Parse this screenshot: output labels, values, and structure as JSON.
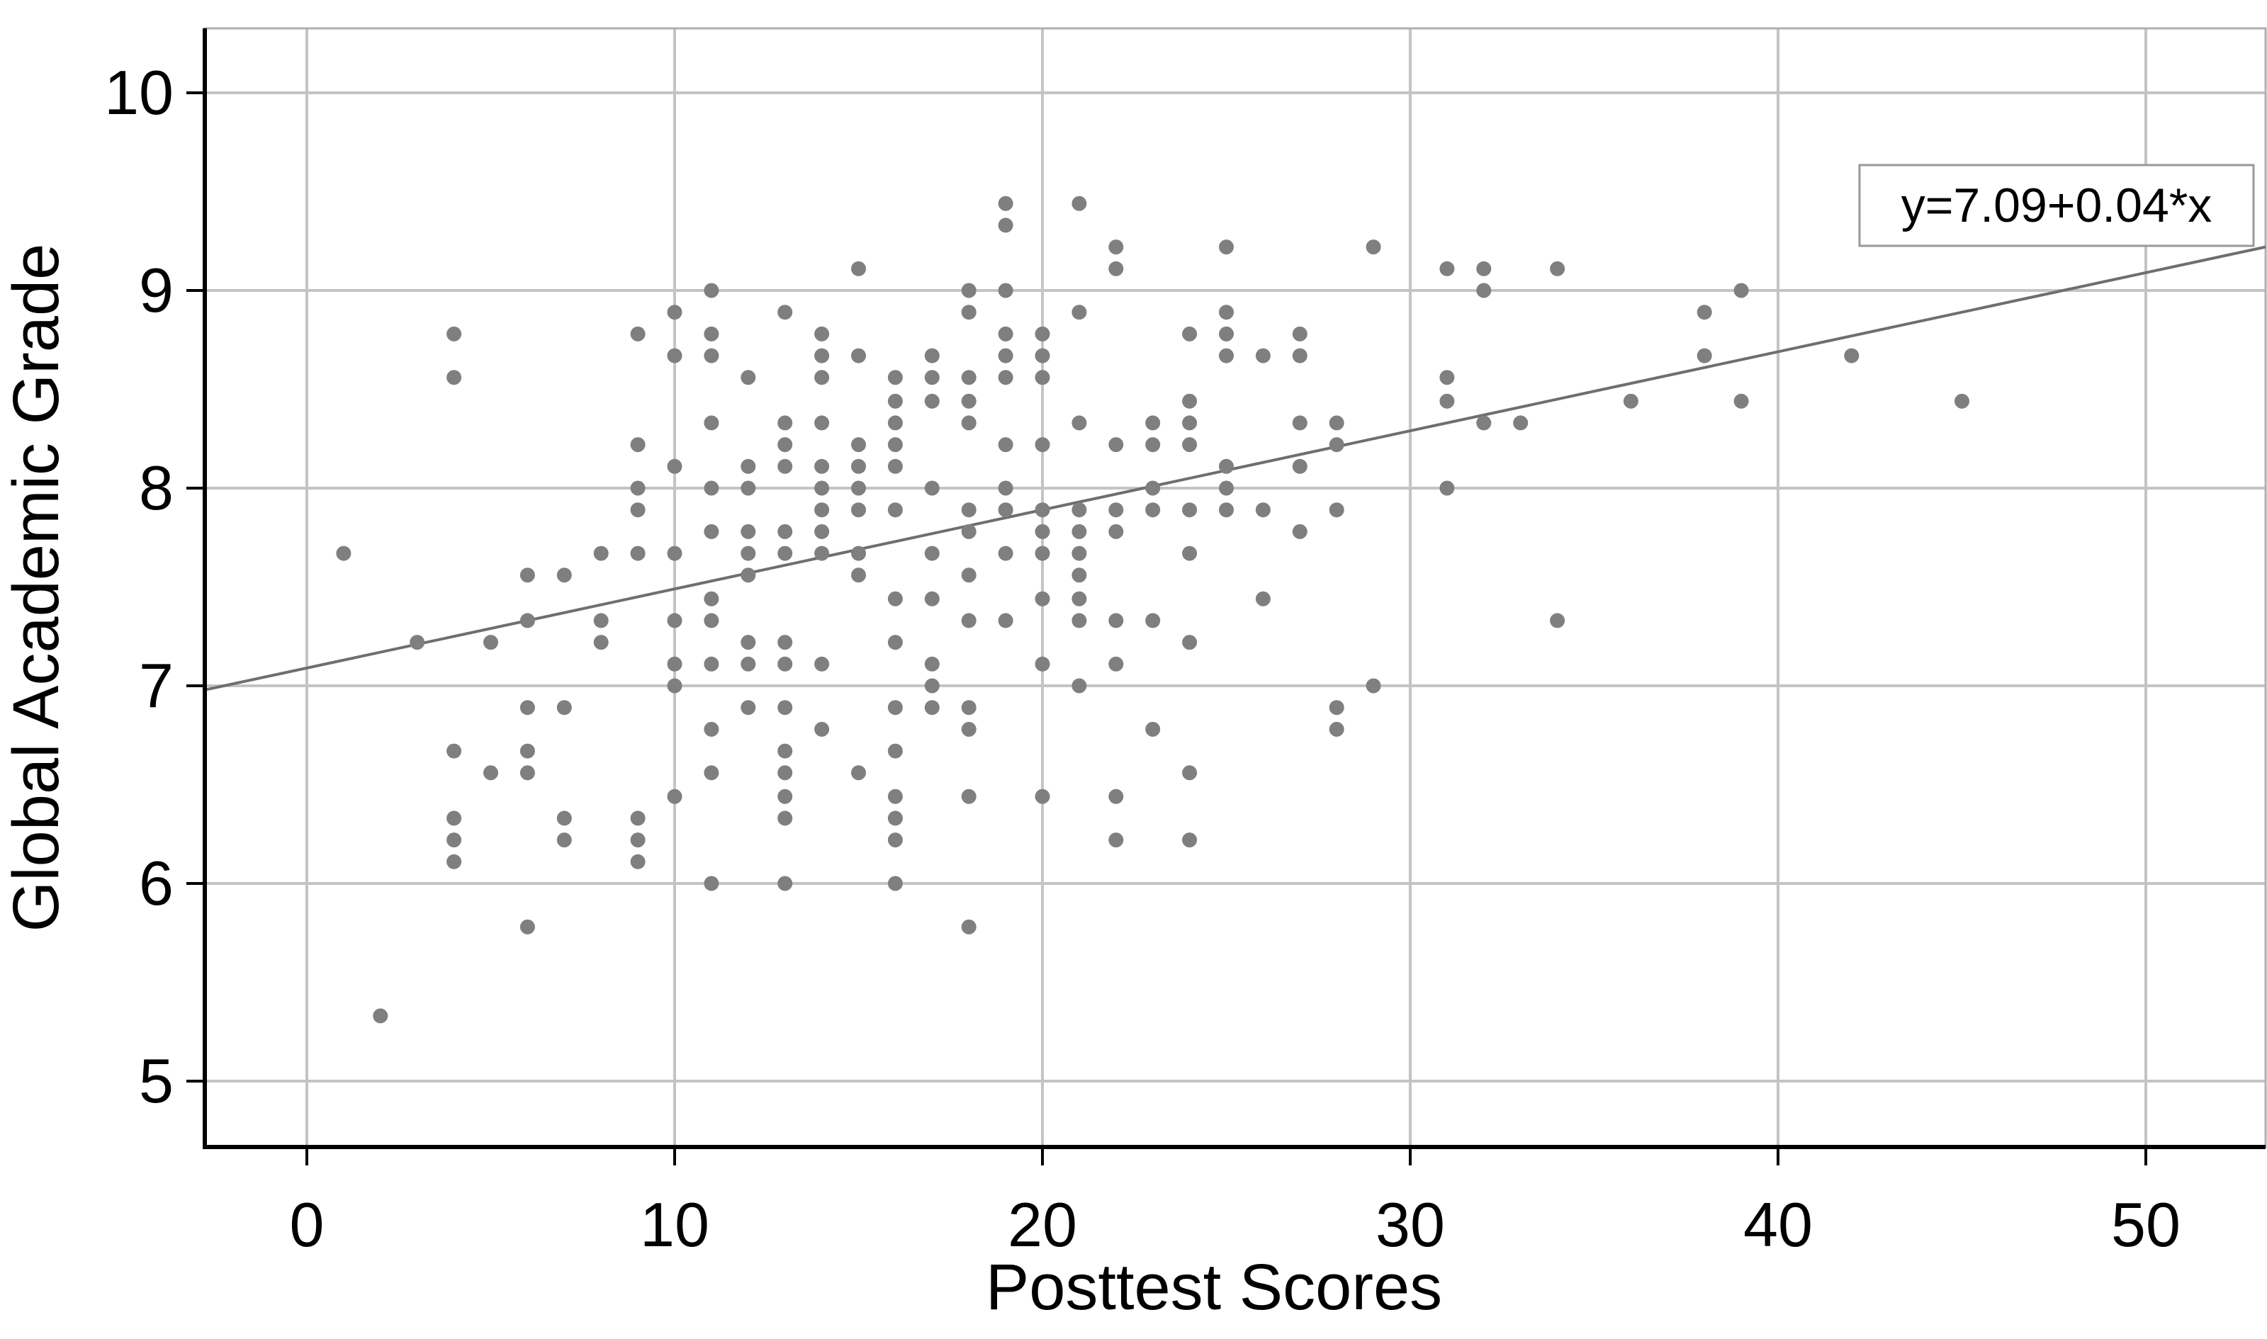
{
  "chart_data": {
    "type": "scatter",
    "title": "",
    "xlabel": "Posttest Scores",
    "ylabel": "Global Academic Grade",
    "x_ticks": [
      0,
      10,
      20,
      30,
      40,
      50
    ],
    "y_ticks": [
      10,
      9,
      8,
      7,
      6,
      5
    ],
    "xlim": [
      -2.74,
      53.3
    ],
    "ylim": [
      4.68,
      10.33
    ],
    "grid": true,
    "legend": "none",
    "annotation": "y=7.09+0.04*x",
    "regression": {
      "intercept": 7.09,
      "slope": 0.04
    },
    "colors": {
      "point": "#7f7f7f",
      "grid": "#c4c4c4",
      "box": "#b0b0b0",
      "axis": "#000000",
      "line": "#6e6e6e",
      "annotation_border": "#999999"
    },
    "points": [
      [
        1,
        7.67
      ],
      [
        2,
        5.33
      ],
      [
        3,
        7.22
      ],
      [
        4,
        8.78
      ],
      [
        4,
        8.56
      ],
      [
        4,
        6.67
      ],
      [
        4,
        6.33
      ],
      [
        4,
        6.22
      ],
      [
        4,
        6.11
      ],
      [
        5,
        7.22
      ],
      [
        5,
        6.56
      ],
      [
        6,
        7.56
      ],
      [
        6,
        7.33
      ],
      [
        6,
        6.89
      ],
      [
        6,
        6.67
      ],
      [
        6,
        6.56
      ],
      [
        6,
        5.78
      ],
      [
        7,
        7.56
      ],
      [
        7,
        6.89
      ],
      [
        7,
        6.33
      ],
      [
        7,
        6.22
      ],
      [
        8,
        7.67
      ],
      [
        8,
        7.33
      ],
      [
        8,
        7.22
      ],
      [
        9,
        8.78
      ],
      [
        9,
        8.22
      ],
      [
        9,
        8.0
      ],
      [
        9,
        7.89
      ],
      [
        9,
        7.67
      ],
      [
        9,
        6.33
      ],
      [
        9,
        6.22
      ],
      [
        9,
        6.11
      ],
      [
        10,
        8.89
      ],
      [
        10,
        8.67
      ],
      [
        10,
        8.11
      ],
      [
        10,
        7.67
      ],
      [
        10,
        7.33
      ],
      [
        10,
        7.11
      ],
      [
        10,
        7.0
      ],
      [
        10,
        6.44
      ],
      [
        11,
        9.0
      ],
      [
        11,
        8.78
      ],
      [
        11,
        8.67
      ],
      [
        11,
        8.33
      ],
      [
        11,
        8.0
      ],
      [
        11,
        7.78
      ],
      [
        11,
        7.44
      ],
      [
        11,
        7.33
      ],
      [
        11,
        7.11
      ],
      [
        11,
        6.78
      ],
      [
        11,
        6.56
      ],
      [
        11,
        6.0
      ],
      [
        12,
        8.56
      ],
      [
        12,
        8.11
      ],
      [
        12,
        8.0
      ],
      [
        12,
        7.78
      ],
      [
        12,
        7.67
      ],
      [
        12,
        7.56
      ],
      [
        12,
        7.22
      ],
      [
        12,
        7.11
      ],
      [
        12,
        6.89
      ],
      [
        13,
        8.89
      ],
      [
        13,
        8.33
      ],
      [
        13,
        8.22
      ],
      [
        13,
        8.11
      ],
      [
        13,
        7.78
      ],
      [
        13,
        7.67
      ],
      [
        13,
        7.22
      ],
      [
        13,
        7.11
      ],
      [
        13,
        6.89
      ],
      [
        13,
        6.67
      ],
      [
        13,
        6.56
      ],
      [
        13,
        6.44
      ],
      [
        13,
        6.33
      ],
      [
        13,
        6.0
      ],
      [
        14,
        8.78
      ],
      [
        14,
        8.67
      ],
      [
        14,
        8.56
      ],
      [
        14,
        8.33
      ],
      [
        14,
        8.11
      ],
      [
        14,
        8.0
      ],
      [
        14,
        7.89
      ],
      [
        14,
        7.78
      ],
      [
        14,
        7.67
      ],
      [
        14,
        7.11
      ],
      [
        14,
        6.78
      ],
      [
        15,
        9.11
      ],
      [
        15,
        8.67
      ],
      [
        15,
        8.22
      ],
      [
        15,
        8.11
      ],
      [
        15,
        8.0
      ],
      [
        15,
        7.89
      ],
      [
        15,
        7.67
      ],
      [
        15,
        7.56
      ],
      [
        15,
        6.56
      ],
      [
        16,
        8.56
      ],
      [
        16,
        8.44
      ],
      [
        16,
        8.33
      ],
      [
        16,
        8.22
      ],
      [
        16,
        8.11
      ],
      [
        16,
        7.89
      ],
      [
        16,
        7.44
      ],
      [
        16,
        7.22
      ],
      [
        16,
        6.89
      ],
      [
        16,
        6.67
      ],
      [
        16,
        6.44
      ],
      [
        16,
        6.33
      ],
      [
        16,
        6.22
      ],
      [
        16,
        6.0
      ],
      [
        17,
        8.67
      ],
      [
        17,
        8.56
      ],
      [
        17,
        8.44
      ],
      [
        17,
        8.0
      ],
      [
        17,
        7.67
      ],
      [
        17,
        7.44
      ],
      [
        17,
        7.11
      ],
      [
        17,
        7.0
      ],
      [
        17,
        6.89
      ],
      [
        18,
        9.0
      ],
      [
        18,
        8.89
      ],
      [
        18,
        8.56
      ],
      [
        18,
        8.44
      ],
      [
        18,
        8.33
      ],
      [
        18,
        7.89
      ],
      [
        18,
        7.78
      ],
      [
        18,
        7.56
      ],
      [
        18,
        7.33
      ],
      [
        18,
        6.89
      ],
      [
        18,
        6.78
      ],
      [
        18,
        6.44
      ],
      [
        18,
        5.78
      ],
      [
        19,
        9.44
      ],
      [
        19,
        9.33
      ],
      [
        19,
        9.0
      ],
      [
        19,
        8.78
      ],
      [
        19,
        8.67
      ],
      [
        19,
        8.56
      ],
      [
        19,
        8.22
      ],
      [
        19,
        8.0
      ],
      [
        19,
        7.89
      ],
      [
        19,
        7.67
      ],
      [
        19,
        7.33
      ],
      [
        20,
        8.78
      ],
      [
        20,
        8.67
      ],
      [
        20,
        8.56
      ],
      [
        20,
        8.22
      ],
      [
        20,
        7.89
      ],
      [
        20,
        7.78
      ],
      [
        20,
        7.67
      ],
      [
        20,
        7.44
      ],
      [
        20,
        7.11
      ],
      [
        20,
        6.44
      ],
      [
        21,
        9.44
      ],
      [
        21,
        8.89
      ],
      [
        21,
        8.33
      ],
      [
        21,
        7.89
      ],
      [
        21,
        7.78
      ],
      [
        21,
        7.67
      ],
      [
        21,
        7.56
      ],
      [
        21,
        7.44
      ],
      [
        21,
        7.33
      ],
      [
        21,
        7.0
      ],
      [
        22,
        9.22
      ],
      [
        22,
        9.11
      ],
      [
        22,
        8.22
      ],
      [
        22,
        7.89
      ],
      [
        22,
        7.78
      ],
      [
        22,
        7.33
      ],
      [
        22,
        7.11
      ],
      [
        22,
        6.44
      ],
      [
        22,
        6.22
      ],
      [
        23,
        8.33
      ],
      [
        23,
        8.22
      ],
      [
        23,
        8.0
      ],
      [
        23,
        7.89
      ],
      [
        23,
        7.33
      ],
      [
        23,
        6.78
      ],
      [
        24,
        8.78
      ],
      [
        24,
        8.44
      ],
      [
        24,
        8.33
      ],
      [
        24,
        8.22
      ],
      [
        24,
        7.89
      ],
      [
        24,
        7.67
      ],
      [
        24,
        7.22
      ],
      [
        24,
        6.56
      ],
      [
        24,
        6.22
      ],
      [
        25,
        9.22
      ],
      [
        25,
        8.89
      ],
      [
        25,
        8.78
      ],
      [
        25,
        8.67
      ],
      [
        25,
        8.11
      ],
      [
        25,
        8.0
      ],
      [
        25,
        7.89
      ],
      [
        26,
        8.67
      ],
      [
        26,
        7.89
      ],
      [
        26,
        7.44
      ],
      [
        27,
        8.78
      ],
      [
        27,
        8.67
      ],
      [
        27,
        8.33
      ],
      [
        27,
        8.11
      ],
      [
        27,
        7.78
      ],
      [
        28,
        8.33
      ],
      [
        28,
        8.22
      ],
      [
        28,
        7.89
      ],
      [
        28,
        6.89
      ],
      [
        28,
        6.78
      ],
      [
        29,
        9.22
      ],
      [
        29,
        7.0
      ],
      [
        31,
        9.11
      ],
      [
        31,
        8.56
      ],
      [
        31,
        8.44
      ],
      [
        31,
        8.0
      ],
      [
        32,
        9.11
      ],
      [
        32,
        9.0
      ],
      [
        32,
        8.33
      ],
      [
        33,
        8.33
      ],
      [
        34,
        9.11
      ],
      [
        34,
        7.33
      ],
      [
        36,
        8.44
      ],
      [
        38,
        8.89
      ],
      [
        38,
        8.67
      ],
      [
        39,
        9.0
      ],
      [
        39,
        8.44
      ],
      [
        42,
        8.67
      ],
      [
        45,
        8.44
      ]
    ]
  }
}
